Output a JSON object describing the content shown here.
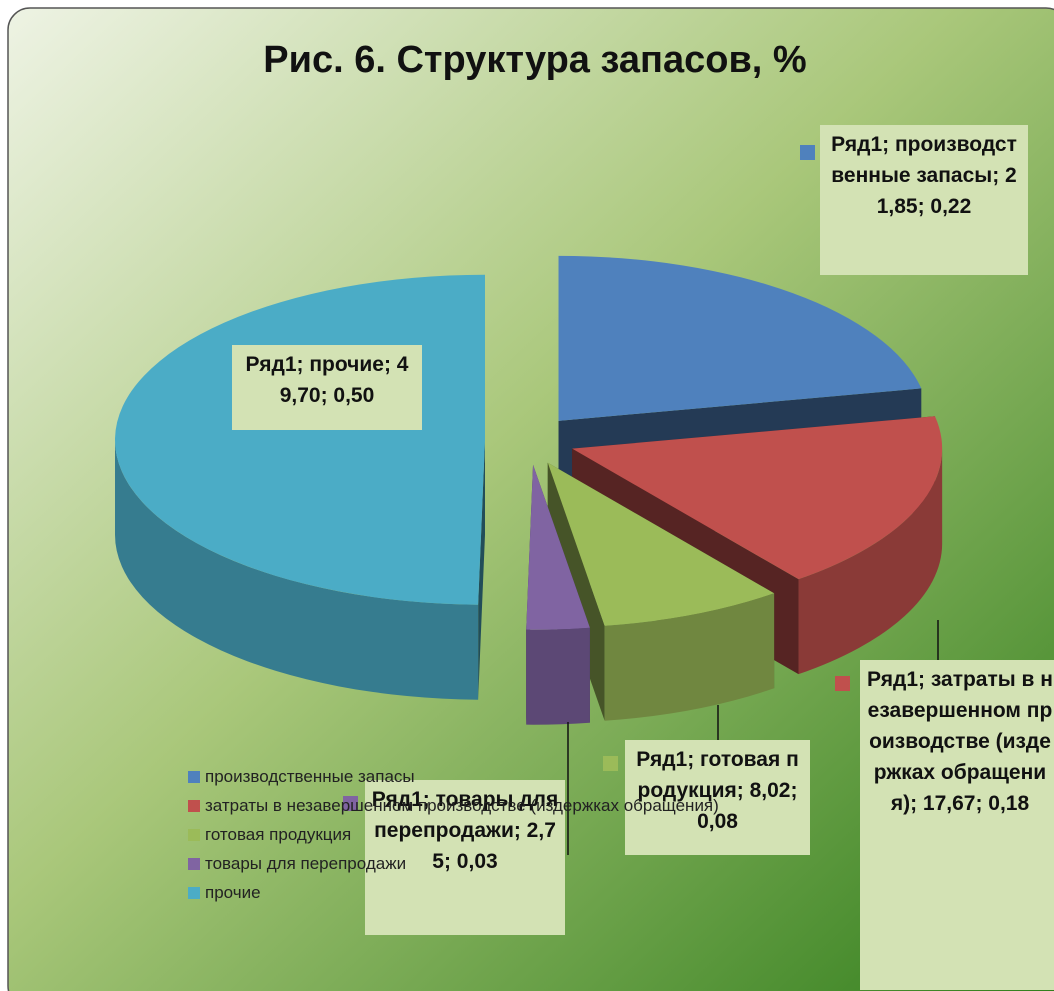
{
  "chart_data": {
    "type": "pie3d",
    "title": "Рис. 6. Структура запасов, %",
    "series_name": "Ряд1",
    "categories": [
      "производственные запасы",
      "затраты в незавершенном производстве (издержках обращения)",
      "готовая продукция",
      "товары для перепродажи",
      "прочие"
    ],
    "values": [
      21.85,
      17.67,
      8.02,
      2.75,
      49.7
    ],
    "value_labels": [
      "Ряд1; производственные запасы; 21,85; 0,22",
      "Ряд1; затраты в незавершенном производстве (издержках обращения); 17,67; 0,18",
      "Ряд1; готовая продукция; 8,02; 0,08",
      "Ряд1; товары для перепродажи; 2,75; 0,03",
      "Ряд1; прочие; 49,70; 0,50"
    ],
    "colors": [
      "#4f81bd",
      "#c0504d",
      "#9bbb59",
      "#8064a2",
      "#4bacc6"
    ],
    "legend": "bottom-left"
  }
}
